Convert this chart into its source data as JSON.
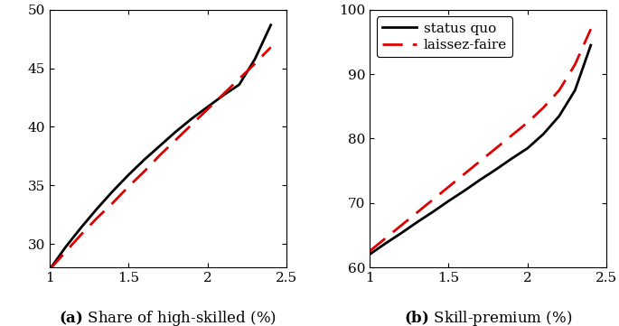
{
  "panel_a": {
    "xlabel_bold": "(a)",
    "xlabel_rest": " Share of high-skilled (%)",
    "ylim": [
      28,
      50
    ],
    "yticks": [
      30,
      35,
      40,
      45,
      50
    ],
    "xlim": [
      1.0,
      2.5
    ],
    "xticks": [
      1.0,
      1.5,
      2.0,
      2.5
    ],
    "xticklabels": [
      "1",
      "1.5",
      "2",
      "2.5"
    ],
    "sq_x": [
      1.0,
      1.1,
      1.2,
      1.3,
      1.4,
      1.5,
      1.6,
      1.7,
      1.8,
      1.9,
      2.0,
      2.1,
      2.2,
      2.3,
      2.4
    ],
    "sq_y": [
      27.8,
      29.7,
      31.4,
      33.0,
      34.5,
      35.9,
      37.2,
      38.4,
      39.6,
      40.7,
      41.7,
      42.7,
      43.6,
      45.8,
      48.7
    ],
    "lf_x": [
      1.0,
      1.1,
      1.2,
      1.3,
      1.4,
      1.5,
      1.6,
      1.7,
      1.8,
      1.9,
      2.0,
      2.1,
      2.2,
      2.3,
      2.4
    ],
    "lf_y": [
      27.8,
      29.3,
      30.8,
      32.2,
      33.5,
      34.9,
      36.2,
      37.6,
      38.9,
      40.2,
      41.5,
      42.8,
      44.1,
      45.4,
      46.8
    ]
  },
  "panel_b": {
    "xlabel_bold": "(b)",
    "xlabel_rest": " Skill-premium (%)",
    "ylim": [
      60,
      100
    ],
    "yticks": [
      60,
      70,
      80,
      90,
      100
    ],
    "xlim": [
      1.0,
      2.5
    ],
    "xticks": [
      1.0,
      1.5,
      2.0,
      2.5
    ],
    "xticklabels": [
      "1",
      "1.5",
      "2",
      "2.5"
    ],
    "sq_x": [
      1.0,
      1.1,
      1.2,
      1.3,
      1.4,
      1.5,
      1.6,
      1.7,
      1.8,
      1.9,
      2.0,
      2.1,
      2.2,
      2.3,
      2.4
    ],
    "sq_y": [
      62.0,
      63.7,
      65.3,
      67.0,
      68.6,
      70.3,
      71.9,
      73.6,
      75.2,
      76.9,
      78.5,
      80.7,
      83.5,
      87.5,
      94.5
    ],
    "lf_x": [
      1.0,
      1.1,
      1.2,
      1.3,
      1.4,
      1.5,
      1.6,
      1.7,
      1.8,
      1.9,
      2.0,
      2.1,
      2.2,
      2.3,
      2.4
    ],
    "lf_y": [
      62.5,
      64.5,
      66.5,
      68.5,
      70.5,
      72.5,
      74.5,
      76.5,
      78.5,
      80.5,
      82.5,
      84.8,
      87.5,
      91.5,
      97.0
    ]
  },
  "legend_labels": [
    "status quo",
    "laissez-faire"
  ],
  "sq_color": "#000000",
  "lf_color": "#dd0000",
  "linewidth": 2.0,
  "dash_pattern": [
    8,
    4
  ]
}
